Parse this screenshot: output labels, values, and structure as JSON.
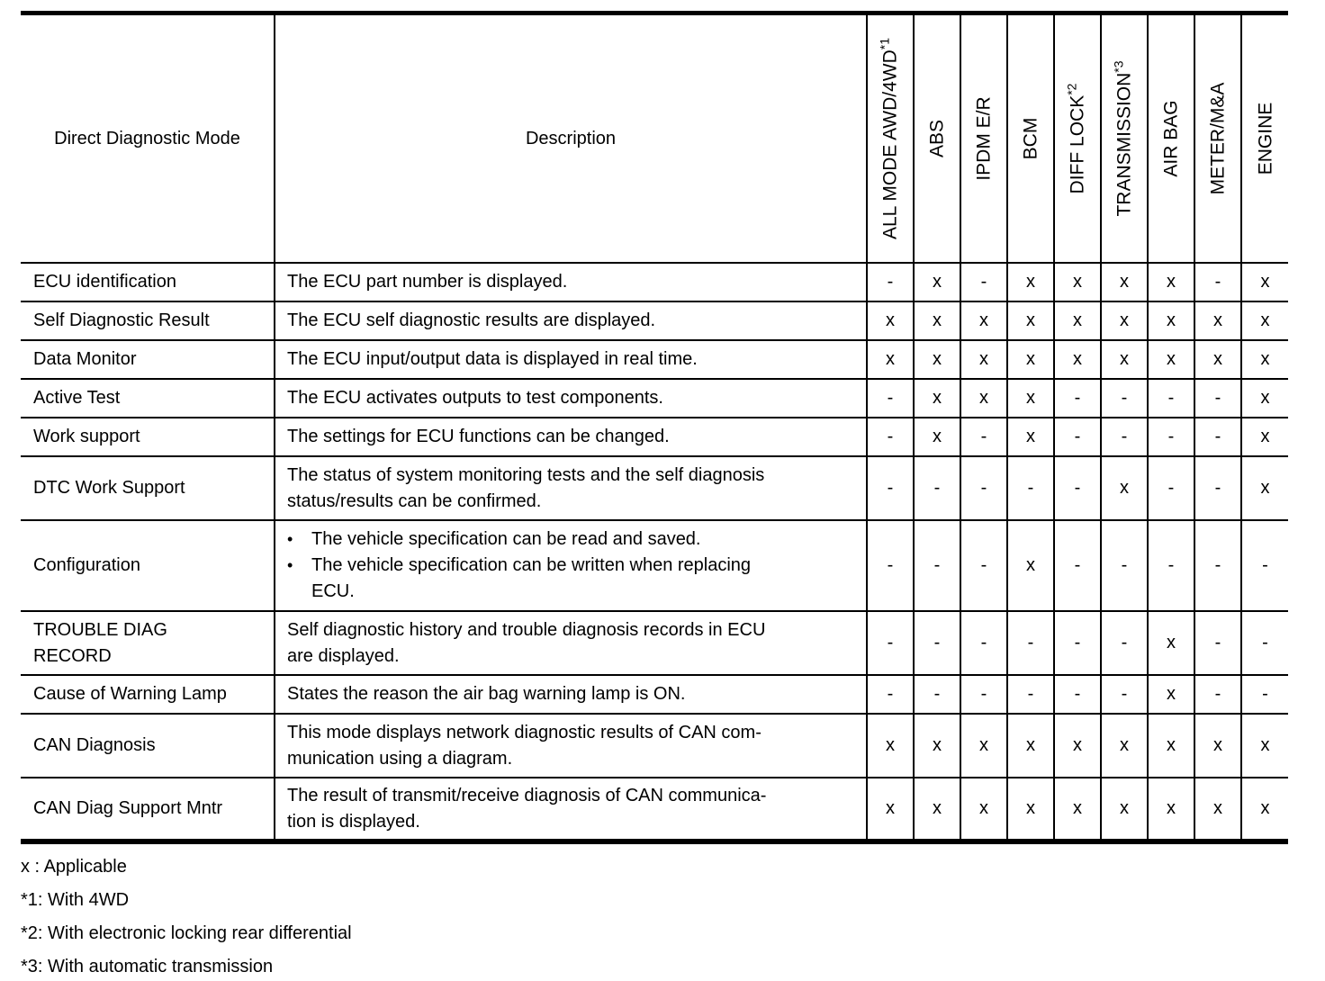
{
  "bullet_glyph": "•",
  "table": {
    "headers": {
      "mode": "Direct Diagnostic Mode",
      "description": "Description",
      "systems": [
        {
          "label": "ALL MODE AWD/4WD",
          "sup": "*1"
        },
        {
          "label": "ABS",
          "sup": ""
        },
        {
          "label": "IPDM E/R",
          "sup": ""
        },
        {
          "label": "BCM",
          "sup": ""
        },
        {
          "label": "DIFF LOCK",
          "sup": "*2"
        },
        {
          "label": "TRANSMISSION",
          "sup": "*3"
        },
        {
          "label": "AIR BAG",
          "sup": ""
        },
        {
          "label": "METER/M&A",
          "sup": ""
        },
        {
          "label": "ENGINE",
          "sup": ""
        }
      ]
    },
    "rows": [
      {
        "mode_lines": [
          "ECU identification"
        ],
        "description": [
          {
            "bullet": false,
            "lines": [
              "The ECU part number is displayed."
            ]
          }
        ],
        "marks": [
          "-",
          "x",
          "-",
          "x",
          "x",
          "x",
          "x",
          "-",
          "x"
        ]
      },
      {
        "mode_lines": [
          "Self Diagnostic Result"
        ],
        "description": [
          {
            "bullet": false,
            "lines": [
              "The ECU self diagnostic results are displayed."
            ]
          }
        ],
        "marks": [
          "x",
          "x",
          "x",
          "x",
          "x",
          "x",
          "x",
          "x",
          "x"
        ]
      },
      {
        "mode_lines": [
          "Data Monitor"
        ],
        "description": [
          {
            "bullet": false,
            "lines": [
              "The ECU input/output data is displayed in real time."
            ]
          }
        ],
        "marks": [
          "x",
          "x",
          "x",
          "x",
          "x",
          "x",
          "x",
          "x",
          "x"
        ]
      },
      {
        "mode_lines": [
          "Active Test"
        ],
        "description": [
          {
            "bullet": false,
            "lines": [
              "The ECU activates outputs to test components."
            ]
          }
        ],
        "marks": [
          "-",
          "x",
          "x",
          "x",
          "-",
          "-",
          "-",
          "-",
          "x"
        ]
      },
      {
        "mode_lines": [
          "Work support"
        ],
        "description": [
          {
            "bullet": false,
            "lines": [
              "The settings for ECU functions can be changed."
            ]
          }
        ],
        "marks": [
          "-",
          "x",
          "-",
          "x",
          "-",
          "-",
          "-",
          "-",
          "x"
        ]
      },
      {
        "mode_lines": [
          "DTC Work Support"
        ],
        "description": [
          {
            "bullet": false,
            "lines": [
              "The status of system monitoring tests and the self diagnosis",
              "status/results can be confirmed."
            ]
          }
        ],
        "marks": [
          "-",
          "-",
          "-",
          "-",
          "-",
          "x",
          "-",
          "-",
          "x"
        ]
      },
      {
        "mode_lines": [
          "Configuration"
        ],
        "description": [
          {
            "bullet": true,
            "lines": [
              "The vehicle specification can be read and saved."
            ]
          },
          {
            "bullet": true,
            "lines": [
              "The vehicle specification can be written when replacing",
              "ECU."
            ]
          }
        ],
        "marks": [
          "-",
          "-",
          "-",
          "x",
          "-",
          "-",
          "-",
          "-",
          "-"
        ]
      },
      {
        "mode_lines": [
          "TROUBLE DIAG",
          "RECORD"
        ],
        "description": [
          {
            "bullet": false,
            "lines": [
              "Self diagnostic history and trouble diagnosis records in ECU",
              "are displayed."
            ]
          }
        ],
        "marks": [
          "-",
          "-",
          "-",
          "-",
          "-",
          "-",
          "x",
          "-",
          "-"
        ]
      },
      {
        "mode_lines": [
          "Cause of Warning Lamp"
        ],
        "description": [
          {
            "bullet": false,
            "lines": [
              "States the reason the air bag warning lamp is ON."
            ]
          }
        ],
        "marks": [
          "-",
          "-",
          "-",
          "-",
          "-",
          "-",
          "x",
          "-",
          "-"
        ]
      },
      {
        "mode_lines": [
          "CAN Diagnosis"
        ],
        "description": [
          {
            "bullet": false,
            "lines": [
              "This mode displays network diagnostic results of CAN com-",
              "munication using a diagram."
            ]
          }
        ],
        "marks": [
          "x",
          "x",
          "x",
          "x",
          "x",
          "x",
          "x",
          "x",
          "x"
        ]
      },
      {
        "mode_lines": [
          "CAN Diag Support Mntr"
        ],
        "description": [
          {
            "bullet": false,
            "lines": [
              "The result of transmit/receive diagnosis of CAN communica-",
              "tion is displayed."
            ]
          }
        ],
        "marks": [
          "x",
          "x",
          "x",
          "x",
          "x",
          "x",
          "x",
          "x",
          "x"
        ]
      }
    ]
  },
  "footnotes": [
    "x : Applicable",
    "*1: With 4WD",
    "*2: With electronic locking rear differential",
    "*3: With automatic transmission"
  ]
}
